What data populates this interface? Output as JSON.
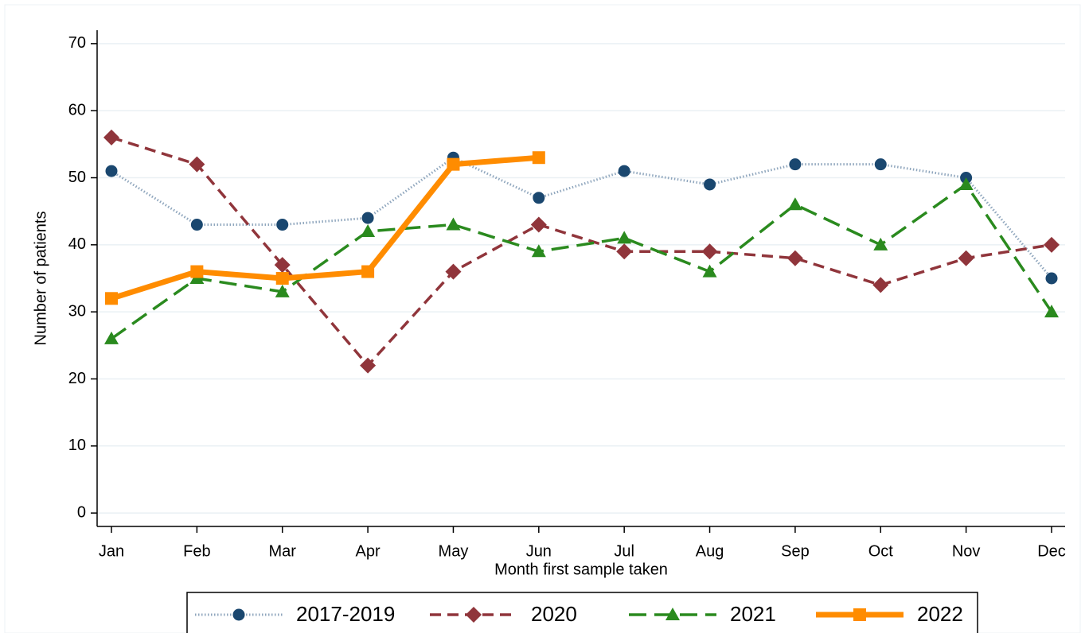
{
  "chart_data": {
    "type": "line",
    "y_label": "Number of patients",
    "x_label": "Month first sample taken",
    "categories": [
      "Jan",
      "Feb",
      "Mar",
      "Apr",
      "May",
      "Jun",
      "Jul",
      "Aug",
      "Sep",
      "Oct",
      "Nov",
      "Dec"
    ],
    "series": [
      {
        "name": "2017-2019",
        "color": "#1a476f",
        "line_style": "dotted",
        "marker": "circle",
        "values": [
          51,
          43,
          43,
          44,
          53,
          47,
          51,
          49,
          52,
          52,
          50,
          35
        ]
      },
      {
        "name": "2020",
        "color": "#90353b",
        "line_style": "dashed",
        "marker": "diamond",
        "values": [
          56,
          52,
          37,
          22,
          36,
          43,
          39,
          39,
          38,
          34,
          38,
          40
        ]
      },
      {
        "name": "2021",
        "color": "#2a8a1e",
        "line_style": "longdash",
        "marker": "triangle",
        "values": [
          26,
          35,
          33,
          42,
          43,
          39,
          41,
          36,
          46,
          40,
          49,
          30
        ]
      },
      {
        "name": "2022",
        "color": "#ff8c00",
        "line_style": "thick",
        "marker": "square",
        "values": [
          32,
          36,
          35,
          36,
          52,
          53,
          null,
          null,
          null,
          null,
          null,
          null
        ]
      }
    ],
    "ylim": [
      -2,
      72
    ],
    "yticks": [
      0,
      10,
      20,
      30,
      40,
      50,
      60,
      70
    ],
    "grid": true
  }
}
